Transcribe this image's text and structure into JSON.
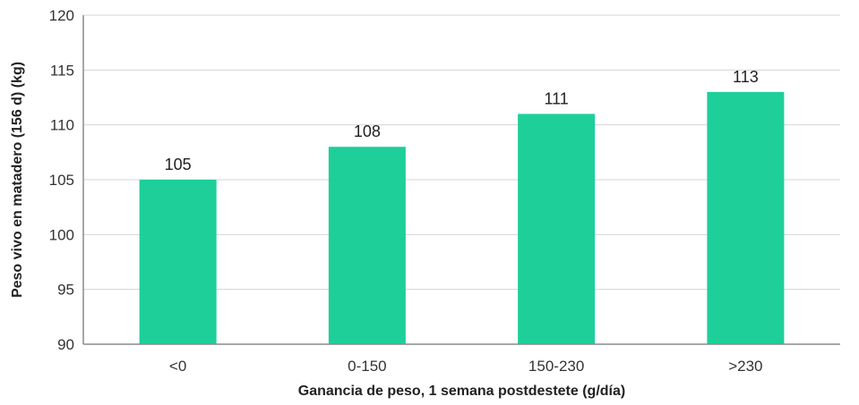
{
  "chart_data": {
    "type": "bar",
    "categories": [
      "<0",
      "0-150",
      "150-230",
      ">230"
    ],
    "values": [
      105,
      108,
      111,
      113
    ],
    "title": "",
    "xlabel": "Ganancia de peso, 1 semana postdestete (g/día)",
    "ylabel": "Peso vivo en matadero (156 d) (kg)",
    "ylim": [
      90,
      120
    ],
    "yticks": [
      "90",
      "95",
      "100",
      "105",
      "110",
      "115",
      "120"
    ],
    "data_labels": [
      "105",
      "108",
      "111",
      "113"
    ],
    "grid": true,
    "legend": "none",
    "colors": {
      "bar": "#1ecf9a",
      "grid": "#d4d4d4",
      "axis": "#8c8c8c"
    }
  }
}
